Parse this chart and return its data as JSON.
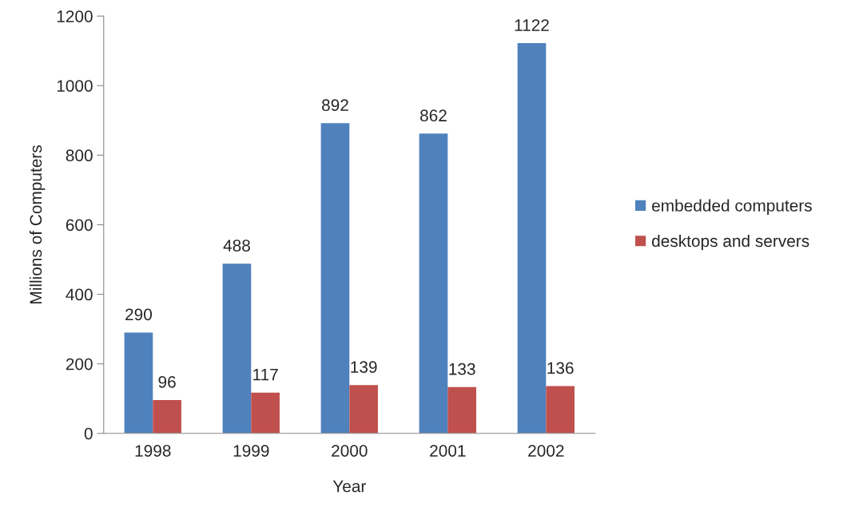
{
  "chart_data": {
    "type": "bar",
    "xlabel": "Year",
    "ylabel": "Millions of Computers",
    "categories": [
      "1998",
      "1999",
      "2000",
      "2001",
      "2002"
    ],
    "series": [
      {
        "name": "embedded computers",
        "color": "#4f81bd",
        "values": [
          290,
          488,
          892,
          862,
          1122
        ]
      },
      {
        "name": "desktops and servers",
        "color": "#c0504d",
        "values": [
          96,
          117,
          139,
          133,
          136
        ]
      }
    ],
    "ylim": [
      0,
      1200
    ],
    "yticks": [
      0,
      200,
      400,
      600,
      800,
      1000,
      1200
    ],
    "data_labels": true,
    "grid": false,
    "legend": "right"
  }
}
